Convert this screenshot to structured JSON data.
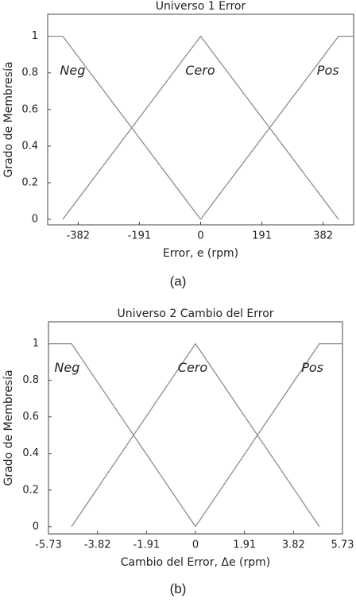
{
  "chart_data": [
    {
      "type": "line",
      "title": "Universo 1 Error",
      "x_label": "Error, e (rpm)",
      "y_label": "Grado de Membresía",
      "caption": "(a)",
      "xlim": [
        -477,
        477
      ],
      "ylim": [
        -0.03,
        1.12
      ],
      "xticks": [
        -382,
        -191,
        0,
        191,
        382
      ],
      "yticks": [
        0,
        0.2,
        0.4,
        0.6,
        0.8,
        1
      ],
      "series": [
        {
          "name": "Neg",
          "color": "#8c8c8c",
          "x": [
            -477,
            -430,
            0
          ],
          "values": [
            1,
            1,
            0
          ]
        },
        {
          "name": "Cero",
          "color": "#8c8c8c",
          "x": [
            -430,
            0,
            430
          ],
          "values": [
            0,
            1,
            0
          ]
        },
        {
          "name": "Pos",
          "color": "#8c8c8c",
          "x": [
            0,
            430,
            477
          ],
          "values": [
            0,
            1,
            1
          ]
        }
      ]
    },
    {
      "type": "line",
      "title": "Universo 2 Cambio del Error",
      "x_label": "Cambio del Error, Δe (rpm)",
      "y_label": "Grado de Membresía",
      "caption": "(b)",
      "xlim": [
        -5.73,
        5.73
      ],
      "ylim": [
        -0.04,
        1.12
      ],
      "xticks": [
        -5.73,
        -3.82,
        -1.91,
        0,
        1.91,
        3.82,
        5.73
      ],
      "yticks": [
        0,
        0.2,
        0.4,
        0.6,
        0.8,
        1
      ],
      "series": [
        {
          "name": "Neg",
          "color": "#8c8c8c",
          "x": [
            -5.73,
            -4.83,
            0
          ],
          "values": [
            1,
            1,
            0
          ]
        },
        {
          "name": "Cero",
          "color": "#8c8c8c",
          "x": [
            -4.83,
            0,
            4.83
          ],
          "values": [
            0,
            1,
            0
          ]
        },
        {
          "name": "Pos",
          "color": "#8c8c8c",
          "x": [
            0,
            4.83,
            5.73
          ],
          "values": [
            0,
            1,
            1
          ]
        }
      ]
    }
  ]
}
